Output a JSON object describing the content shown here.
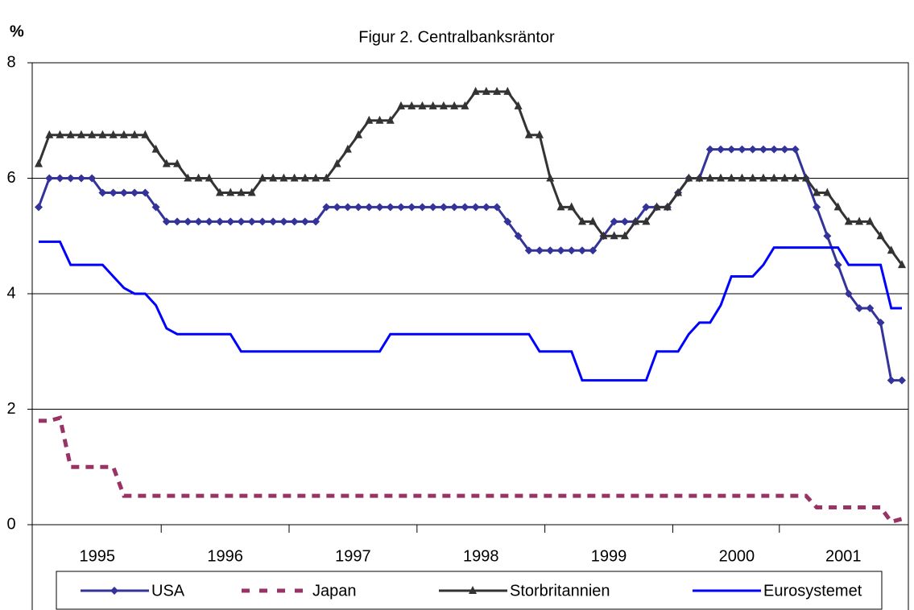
{
  "chart_data": {
    "type": "line",
    "title": "Figur 2. Centralbanksräntor",
    "y_label": "%",
    "categories": [
      null,
      null,
      null,
      null,
      null,
      null,
      "1995",
      null,
      null,
      null,
      null,
      null,
      null,
      null,
      null,
      null,
      null,
      null,
      "1996",
      null,
      null,
      null,
      null,
      null,
      null,
      null,
      null,
      null,
      null,
      null,
      "1997",
      null,
      null,
      null,
      null,
      null,
      null,
      null,
      null,
      null,
      null,
      null,
      "1998",
      null,
      null,
      null,
      null,
      null,
      null,
      null,
      null,
      null,
      null,
      null,
      "1999",
      null,
      null,
      null,
      null,
      null,
      null,
      null,
      null,
      null,
      null,
      null,
      "2000",
      null,
      null,
      null,
      null,
      null,
      null,
      null,
      null,
      null,
      "2001",
      null,
      null,
      null,
      null,
      null
    ],
    "series": [
      {
        "name": "USA",
        "color": "#333399",
        "marker": "diamond",
        "dashed": false,
        "values": [
          5.5,
          6,
          6,
          6,
          6,
          6,
          5.75,
          5.75,
          5.75,
          5.75,
          5.75,
          5.5,
          5.25,
          5.25,
          5.25,
          5.25,
          5.25,
          5.25,
          5.25,
          5.25,
          5.25,
          5.25,
          5.25,
          5.25,
          5.25,
          5.25,
          5.25,
          5.5,
          5.5,
          5.5,
          5.5,
          5.5,
          5.5,
          5.5,
          5.5,
          5.5,
          5.5,
          5.5,
          5.5,
          5.5,
          5.5,
          5.5,
          5.5,
          5.5,
          5.25,
          5,
          4.75,
          4.75,
          4.75,
          4.75,
          4.75,
          4.75,
          4.75,
          5,
          5.25,
          5.25,
          5.25,
          5.5,
          5.5,
          5.5,
          5.75,
          6,
          6,
          6.5,
          6.5,
          6.5,
          6.5,
          6.5,
          6.5,
          6.5,
          6.5,
          6.5,
          6,
          5.5,
          5,
          4.5,
          4,
          3.75,
          3.75,
          3.5,
          2.5,
          2.5
        ]
      },
      {
        "name": "Japan",
        "color": "#993366",
        "marker": "none",
        "dashed": true,
        "values": [
          1.8,
          1.8,
          1.85,
          1,
          1,
          1,
          1,
          1,
          0.5,
          0.5,
          0.5,
          0.5,
          0.5,
          0.5,
          0.5,
          0.5,
          0.5,
          0.5,
          0.5,
          0.5,
          0.5,
          0.5,
          0.5,
          0.5,
          0.5,
          0.5,
          0.5,
          0.5,
          0.5,
          0.5,
          0.5,
          0.5,
          0.5,
          0.5,
          0.5,
          0.5,
          0.5,
          0.5,
          0.5,
          0.5,
          0.5,
          0.5,
          0.5,
          0.5,
          0.5,
          0.5,
          0.5,
          0.5,
          0.5,
          0.5,
          0.5,
          0.5,
          0.5,
          0.5,
          0.5,
          0.5,
          0.5,
          0.5,
          0.5,
          0.5,
          0.5,
          0.5,
          0.5,
          0.5,
          0.5,
          0.5,
          0.5,
          0.5,
          0.5,
          0.5,
          0.5,
          0.5,
          0.5,
          0.3,
          0.3,
          0.3,
          0.3,
          0.3,
          0.3,
          0.3,
          0.05,
          0.1
        ]
      },
      {
        "name": "Storbritannien",
        "color": "#333333",
        "marker": "triangle",
        "dashed": false,
        "values": [
          6.25,
          6.75,
          6.75,
          6.75,
          6.75,
          6.75,
          6.75,
          6.75,
          6.75,
          6.75,
          6.75,
          6.5,
          6.25,
          6.25,
          6,
          6,
          6,
          5.75,
          5.75,
          5.75,
          5.75,
          6,
          6,
          6,
          6,
          6,
          6,
          6,
          6.25,
          6.5,
          6.75,
          7,
          7,
          7,
          7.25,
          7.25,
          7.25,
          7.25,
          7.25,
          7.25,
          7.25,
          7.5,
          7.5,
          7.5,
          7.5,
          7.25,
          6.75,
          6.75,
          6,
          5.5,
          5.5,
          5.25,
          5.25,
          5,
          5,
          5,
          5.25,
          5.25,
          5.5,
          5.5,
          5.75,
          6,
          6,
          6,
          6,
          6,
          6,
          6,
          6,
          6,
          6,
          6,
          6,
          5.75,
          5.75,
          5.5,
          5.25,
          5.25,
          5.25,
          5,
          4.75,
          4.5
        ]
      },
      {
        "name": "Eurosystemet",
        "color": "#0000ff",
        "marker": "none",
        "dashed": false,
        "values": [
          4.9,
          4.9,
          4.9,
          4.5,
          4.5,
          4.5,
          4.5,
          4.3,
          4.1,
          4,
          4,
          3.8,
          3.4,
          3.3,
          3.3,
          3.3,
          3.3,
          3.3,
          3.3,
          3,
          3,
          3,
          3,
          3,
          3,
          3,
          3,
          3,
          3,
          3,
          3,
          3,
          3,
          3.3,
          3.3,
          3.3,
          3.3,
          3.3,
          3.3,
          3.3,
          3.3,
          3.3,
          3.3,
          3.3,
          3.3,
          3.3,
          3.3,
          3,
          3,
          3,
          3,
          2.5,
          2.5,
          2.5,
          2.5,
          2.5,
          2.5,
          2.5,
          3,
          3,
          3,
          3.3,
          3.5,
          3.5,
          3.8,
          4.3,
          4.3,
          4.3,
          4.5,
          4.8,
          4.8,
          4.8,
          4.8,
          4.8,
          4.8,
          4.8,
          4.5,
          4.5,
          4.5,
          4.5,
          3.75,
          3.75
        ]
      }
    ],
    "ylim": [
      0,
      8
    ],
    "yticks": [
      0,
      2,
      4,
      6,
      8
    ],
    "grid": true,
    "legend": "bottom"
  }
}
